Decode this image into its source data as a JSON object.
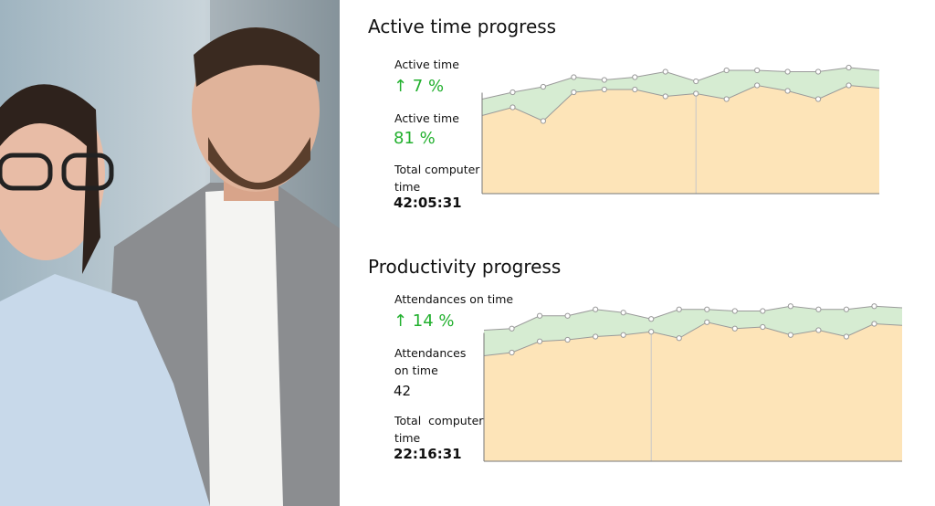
{
  "panels": [
    {
      "title": "Active time progress",
      "stats": [
        {
          "label": "Active time",
          "value": "↑ 7 %"
        },
        {
          "label": "Active time",
          "value": "81 %"
        },
        {
          "label": "Total computer time",
          "value": "42:05:31"
        }
      ],
      "chart": {
        "type": "area",
        "ylim": [
          0,
          100
        ],
        "line_color": "#9a9a9a",
        "series": [
          {
            "color": "#fde4b8",
            "values": [
              57,
              63,
              53,
              74,
              76,
              76,
              71,
              73,
              69,
              79,
              75,
              69,
              79,
              77
            ]
          },
          {
            "color": "#d6ecd2",
            "values": [
              69,
              74,
              78,
              85,
              83,
              85,
              89,
              82,
              90,
              90,
              89,
              89,
              92,
              90
            ]
          }
        ]
      }
    },
    {
      "title": "Productivity progress",
      "stats": [
        {
          "label": "Attendances on time",
          "value": "↑ 14 %"
        },
        {
          "label": "Attendances on time",
          "value": "42"
        },
        {
          "label": "Total  computer time",
          "value": "22:16:31"
        }
      ],
      "chart": {
        "type": "area",
        "ylim": [
          0,
          100
        ],
        "line_color": "#9a9a9a",
        "series": [
          {
            "color": "#fde4b8",
            "values": [
              66,
              68,
              75,
              76,
              78,
              79,
              81,
              77,
              87,
              83,
              84,
              79,
              82,
              78,
              86,
              85
            ]
          },
          {
            "color": "#d6ecd2",
            "values": [
              82,
              83,
              91,
              91,
              95,
              93,
              89,
              95,
              95,
              94,
              94,
              97,
              95,
              95,
              97,
              96
            ]
          }
        ]
      }
    }
  ]
}
